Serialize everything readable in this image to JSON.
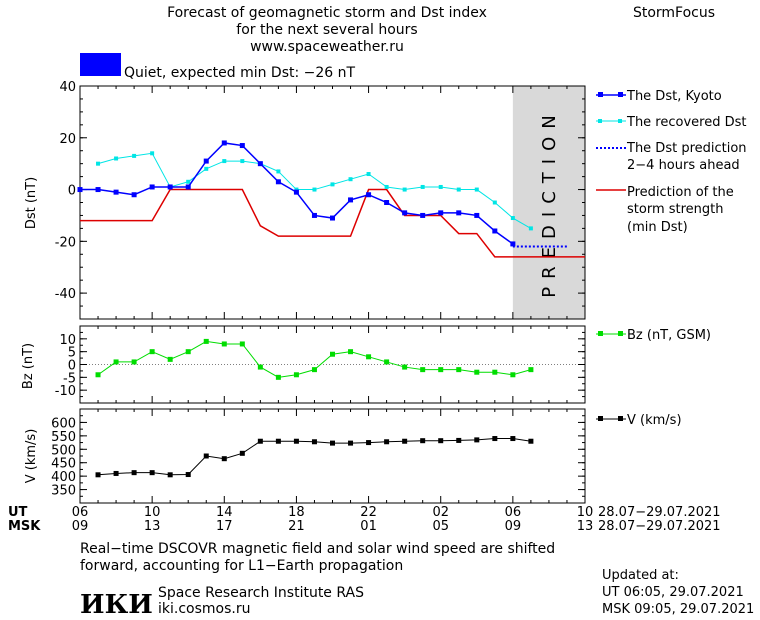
{
  "header": {
    "title_lines": [
      "Forecast of geomagnetic storm and Dst index",
      "for the next several hours",
      "www.spaceweather.ru"
    ],
    "brand": "StormFocus",
    "status_text": "Quiet, expected min Dst: −26 nT",
    "status_color": "#0000ff"
  },
  "prediction_label": "PREDICTION",
  "colors": {
    "dst_kyoto": "#0000ff",
    "recovered": "#00e5e5",
    "dst_prediction": "#0000ff",
    "storm_strength": "#dd0000",
    "bz": "#00dd00",
    "v": "#000000",
    "prediction_band": "#d9d9d9"
  },
  "time_axis": {
    "ut_label": "UT",
    "msk_label": "MSK",
    "ut_ticks": [
      "06",
      "10",
      "14",
      "18",
      "22",
      "02",
      "06",
      "10"
    ],
    "msk_ticks": [
      "09",
      "13",
      "17",
      "21",
      "01",
      "05",
      "09",
      "13"
    ],
    "ut_dates": "28.07−29.07.2021",
    "msk_dates": "28.07−29.07.2021"
  },
  "chart_data": [
    {
      "type": "line",
      "ylabel": "Dst (nT)",
      "ylim": [
        -50,
        40
      ],
      "yticks": [
        40,
        20,
        0,
        -20,
        -40
      ],
      "xlim": [
        6,
        34
      ],
      "prediction_start": 30,
      "legend": {
        "dst": "The Dst, Kyoto",
        "recovered": "The recovered Dst",
        "prediction": [
          "The Dst prediction",
          "2−4 hours ahead"
        ],
        "strength": [
          "Prediction of the",
          "storm strength",
          "(min Dst)"
        ]
      },
      "series": [
        {
          "name": "The Dst, Kyoto",
          "x": [
            6,
            7,
            8,
            9,
            10,
            11,
            12,
            13,
            14,
            15,
            16,
            17,
            18,
            19,
            20,
            21,
            22,
            23,
            24,
            25,
            26,
            27,
            28,
            29,
            30
          ],
          "y": [
            0,
            0,
            -1,
            -2,
            1,
            1,
            1,
            11,
            18,
            17,
            10,
            3,
            -1,
            -10,
            -11,
            -4,
            -2,
            -5,
            -9,
            -10,
            -9,
            -9,
            -10,
            -16,
            -21
          ]
        },
        {
          "name": "The recovered Dst",
          "x": [
            7,
            8,
            9,
            10,
            11,
            12,
            13,
            14,
            15,
            16,
            17,
            18,
            19,
            20,
            21,
            22,
            23,
            24,
            25,
            26,
            27,
            28,
            29,
            30,
            31
          ],
          "y": [
            10,
            12,
            13,
            14,
            1,
            3,
            8,
            11,
            11,
            10,
            7,
            0,
            0,
            2,
            4,
            6,
            1,
            0,
            1,
            1,
            0,
            0,
            -5,
            -11,
            -15
          ]
        },
        {
          "name": "The Dst prediction",
          "x": [
            30,
            31,
            32,
            33
          ],
          "y": [
            -22,
            -22,
            -22,
            -22
          ]
        },
        {
          "name": "Prediction of the storm strength",
          "x": [
            6,
            10,
            11,
            15,
            16,
            17,
            21,
            22,
            23,
            24,
            25,
            26,
            27,
            28,
            29,
            34
          ],
          "y": [
            -12,
            -12,
            0,
            0,
            -14,
            -18,
            -18,
            0,
            0,
            -10,
            -10,
            -10,
            -17,
            -17,
            -26,
            -26
          ]
        }
      ]
    },
    {
      "type": "line",
      "ylabel": "Bz (nT)",
      "ylim": [
        -15,
        15
      ],
      "yticks": [
        10,
        5,
        0,
        -5,
        -10
      ],
      "legend": "Bz (nT, GSM)",
      "series": [
        {
          "name": "Bz (nT, GSM)",
          "x": [
            7,
            8,
            9,
            10,
            11,
            12,
            13,
            14,
            15,
            16,
            17,
            18,
            19,
            20,
            21,
            22,
            23,
            24,
            25,
            26,
            27,
            28,
            29,
            30,
            31
          ],
          "y": [
            -4,
            1,
            1,
            5,
            2,
            5,
            9,
            8,
            8,
            -1,
            -5,
            -4,
            -2,
            4,
            5,
            3,
            1,
            -1,
            -2,
            -2,
            -2,
            -3,
            -3,
            -4,
            -2
          ]
        }
      ]
    },
    {
      "type": "line",
      "ylabel": "V (km/s)",
      "ylim": [
        300,
        650
      ],
      "yticks": [
        600,
        550,
        500,
        450,
        400,
        350
      ],
      "legend": "V (km/s)",
      "series": [
        {
          "name": "V (km/s)",
          "x": [
            7,
            8,
            9,
            10,
            11,
            12,
            13,
            14,
            15,
            16,
            17,
            18,
            19,
            20,
            21,
            22,
            23,
            24,
            25,
            26,
            27,
            28,
            29,
            30,
            31
          ],
          "y": [
            405,
            410,
            413,
            413,
            405,
            406,
            475,
            465,
            485,
            530,
            530,
            530,
            528,
            523,
            523,
            525,
            528,
            530,
            532,
            532,
            533,
            535,
            540,
            540,
            530
          ]
        }
      ]
    }
  ],
  "footer": {
    "note_lines": [
      "Real−time DSCOVR magnetic field and solar wind speed are shifted",
      "forward, accounting for L1−Earth propagation"
    ],
    "logo_text": "ИКИ",
    "institute": "Space Research Institute RAS",
    "site": "iki.cosmos.ru",
    "updated_label": "Updated at:",
    "updated_ut": "UT   06:05, 29.07.2021",
    "updated_msk": "MSK 09:05, 29.07.2021"
  }
}
